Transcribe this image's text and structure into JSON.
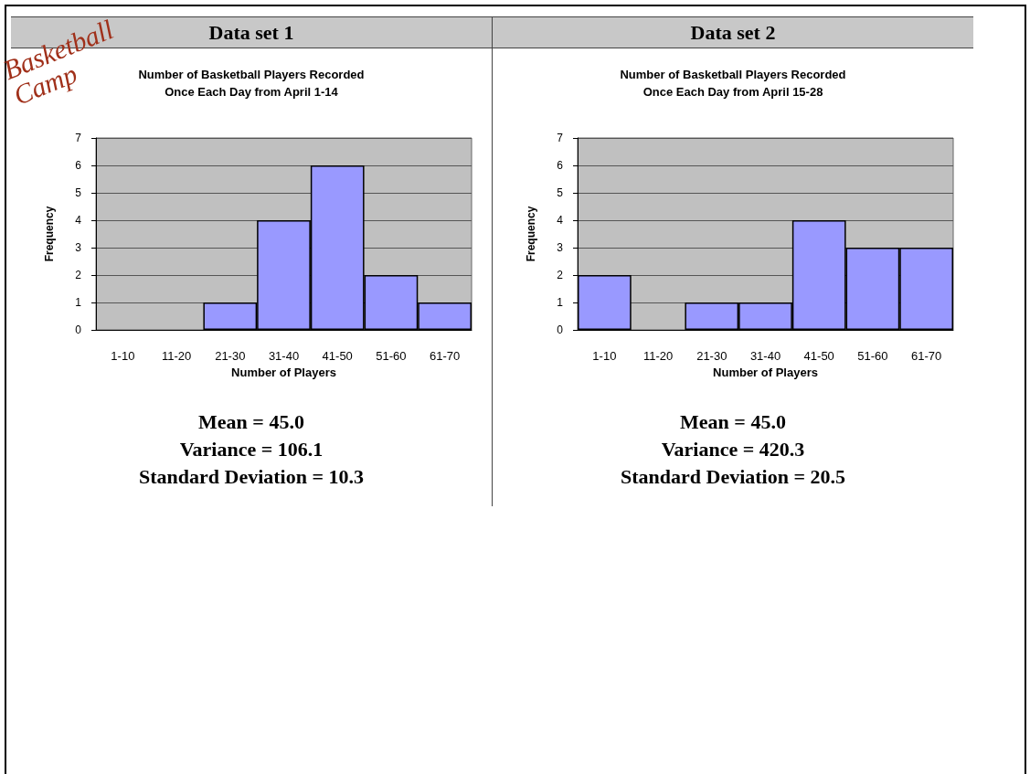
{
  "chart_data": [
    {
      "type": "bar",
      "title": "Data set 1",
      "subtitle": "Number of Basketball Players Recorded\nOnce Each Day from April 1-14",
      "xlabel": "Number of Players",
      "ylabel": "Frequency",
      "categories": [
        "1-10",
        "11-20",
        "21-30",
        "31-40",
        "41-50",
        "51-60",
        "61-70"
      ],
      "values": [
        0,
        0,
        1,
        4,
        6,
        2,
        1
      ],
      "color": "#9999ff",
      "ylim": [
        0,
        7
      ],
      "yticks": [
        0,
        1,
        2,
        3,
        4,
        5,
        6,
        7
      ],
      "grid": "y",
      "annotations": [
        "Basketball Camp",
        "Mean = 45.0",
        "Variance = 106.1",
        "Standard Deviation = 10.3"
      ]
    },
    {
      "type": "bar",
      "title": "Data set 2",
      "subtitle": "Number of Basketball Players Recorded\nOnce Each Day from April 15-28",
      "xlabel": "Number of Players",
      "ylabel": "Frequency",
      "categories": [
        "1-10",
        "11-20",
        "21-30",
        "31-40",
        "41-50",
        "51-60",
        "61-70"
      ],
      "values": [
        2,
        0,
        1,
        1,
        4,
        3,
        3
      ],
      "color": "#9999ff",
      "ylim": [
        0,
        7
      ],
      "yticks": [
        0,
        1,
        2,
        3,
        4,
        5,
        6,
        7
      ],
      "grid": "y",
      "annotations": [
        "Mean = 45.0",
        "Variance = 420.3",
        "Standard Deviation = 20.5"
      ]
    }
  ]
}
